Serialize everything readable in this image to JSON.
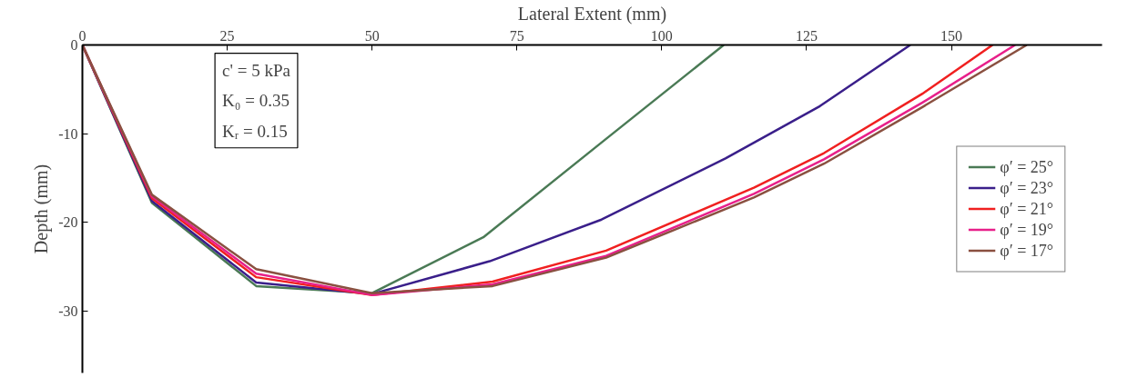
{
  "chart_data": {
    "type": "line",
    "xlabel": "Lateral Extent (mm)",
    "ylabel": "Depth (mm)",
    "xlim": [
      0,
      176
    ],
    "ylim": [
      -37,
      0
    ],
    "xticks": [
      0,
      25,
      50,
      75,
      100,
      125,
      150
    ],
    "yticks": [
      0,
      -10,
      -20,
      -30
    ],
    "grid": false,
    "legend": "right",
    "marker": "none",
    "line_style": "solid",
    "annotations": [
      "c' = 5 kPa\nK₀ = 0.35\nKᵣ = 0.15"
    ],
    "series": [
      {
        "name": "φ′ = 25°",
        "color": "#4a7a55",
        "x": [
          0,
          12,
          30,
          50,
          69.2,
          90,
          110.7
        ],
        "values": [
          0,
          -17.8,
          -27.2,
          -28,
          -21.7,
          -10.8,
          0
        ]
      },
      {
        "name": "φ′ = 23°",
        "color": "#3a1f8a",
        "x": [
          0,
          12,
          30,
          50,
          70.3,
          89.6,
          111,
          127.3,
          142.9
        ],
        "values": [
          0,
          -17.6,
          -26.8,
          -28.1,
          -24.4,
          -19.7,
          -12.8,
          -6.9,
          0
        ]
      },
      {
        "name": "φ′ = 21°",
        "color": "#f02020",
        "x": [
          0,
          12,
          30,
          50,
          70.8,
          90.4,
          115.9,
          128,
          145,
          157.1
        ],
        "values": [
          0,
          -17.3,
          -26.2,
          -28.2,
          -26.7,
          -23.2,
          -16.1,
          -12.2,
          -5.5,
          0
        ]
      },
      {
        "name": "φ′ = 19°",
        "color": "#e8208a",
        "x": [
          0,
          12,
          30,
          50,
          70.8,
          90.4,
          115.9,
          128,
          145,
          161
        ],
        "values": [
          0,
          -17.1,
          -25.8,
          -28.2,
          -27.0,
          -23.8,
          -16.8,
          -12.9,
          -6.5,
          0
        ]
      },
      {
        "name": "φ′ = 17°",
        "color": "#8a5040",
        "x": [
          0,
          12,
          30,
          50,
          70.8,
          90.4,
          115.9,
          128,
          145,
          163
        ],
        "values": [
          0,
          -16.9,
          -25.3,
          -28.0,
          -27.2,
          -24.0,
          -17.2,
          -13.4,
          -7.0,
          0
        ]
      }
    ]
  }
}
